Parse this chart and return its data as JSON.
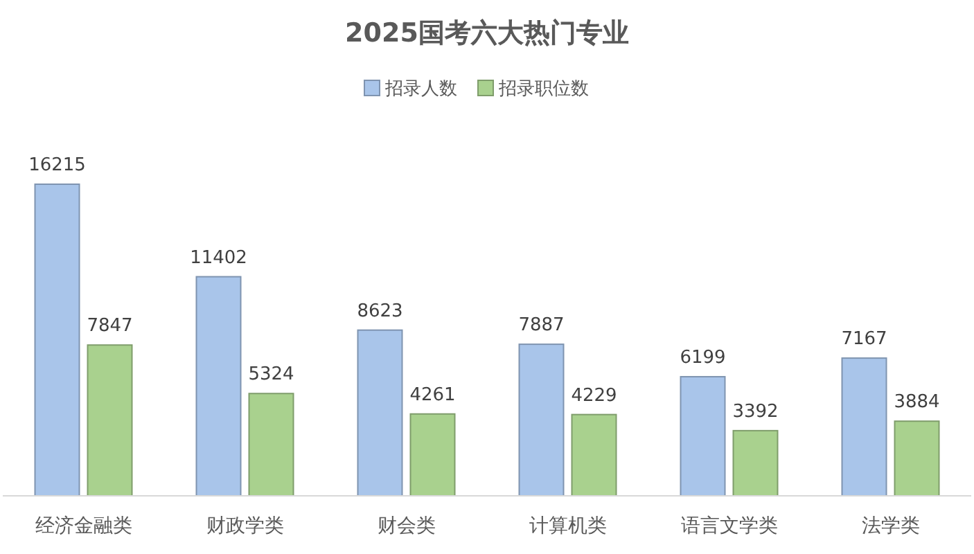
{
  "chart_data": {
    "type": "bar",
    "title": "2025国考六大热门专业",
    "categories": [
      "经济金融类",
      "财政学类",
      "财会类",
      "计算机类",
      "语言文学类",
      "法学类"
    ],
    "series": [
      {
        "name": "招录人数",
        "color": "#a9c5ea",
        "values": [
          16215,
          11402,
          8623,
          7887,
          6199,
          7167
        ]
      },
      {
        "name": "招录职位数",
        "color": "#a9d18e",
        "values": [
          7847,
          5324,
          4261,
          4229,
          3392,
          3884
        ]
      }
    ],
    "data_labels": true,
    "legend": "top"
  }
}
